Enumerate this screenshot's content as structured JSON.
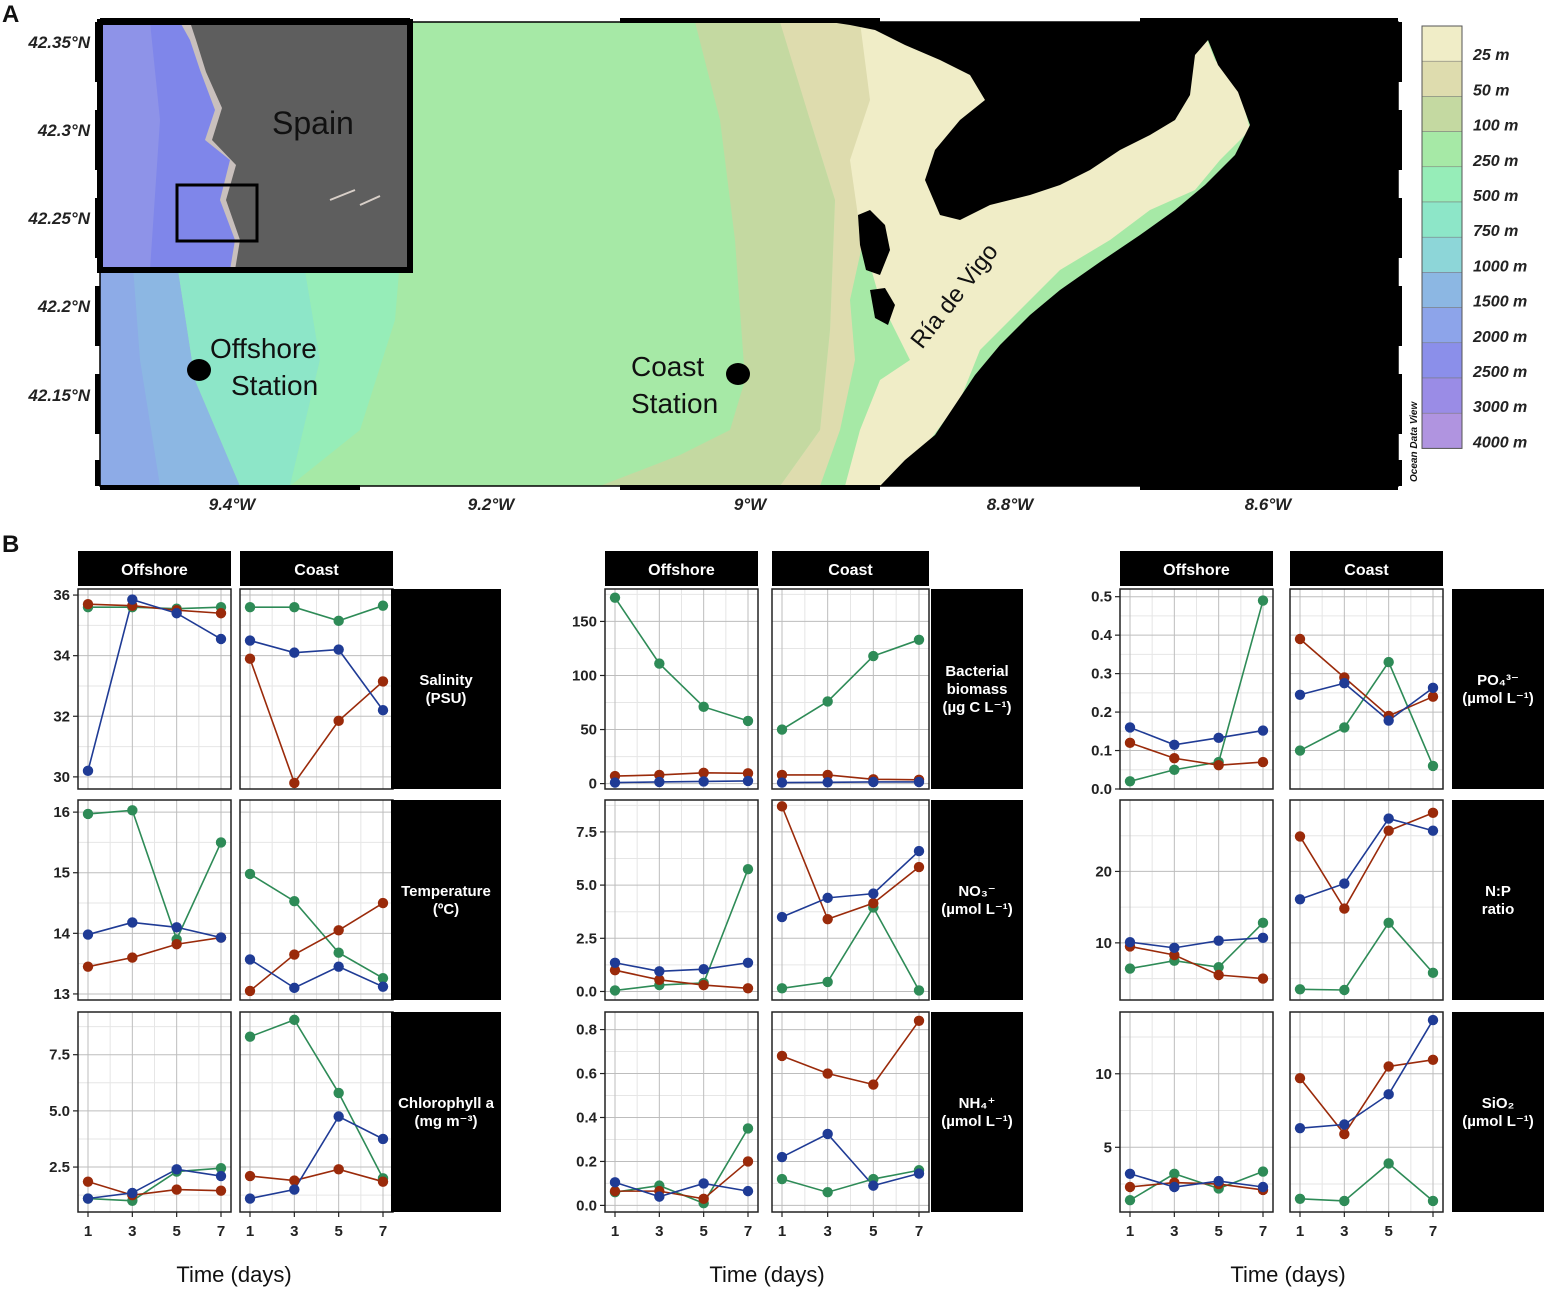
{
  "panel_a": {
    "letter": "A",
    "lat_ticks": [
      "42.35°N",
      "42.3°N",
      "42.25°N",
      "42.2°N",
      "42.15°N"
    ],
    "lon_ticks": [
      "9.4°W",
      "9.2°W",
      "9°W",
      "8.8°W",
      "8.6°W"
    ],
    "inset_label": "Spain",
    "stations": [
      {
        "name_line1": "Offshore",
        "name_line2": "Station"
      },
      {
        "name_line1": "Coast",
        "name_line2": "Station"
      }
    ],
    "ria_label": "Ría de Vigo",
    "legend_items": [
      "25 m",
      "50 m",
      "100 m",
      "250 m",
      "500 m",
      "750 m",
      "1000 m",
      "1500 m",
      "2000 m",
      "2500 m",
      "3000 m",
      "4000 m"
    ],
    "legend_colors": [
      "#f0edc7",
      "#dedcae",
      "#c4d9a1",
      "#a6e9a6",
      "#96edb8",
      "#8de6c8",
      "#8dd6d8",
      "#8cb7e3",
      "#8da4ea",
      "#8b8fea",
      "#9a8ce6",
      "#b094e0"
    ],
    "watermark": "Ocean Data View",
    "colors": {
      "land": "#000000",
      "inset_land": "#5e5e5e",
      "inset_sea": "#7f86ea"
    }
  },
  "panel_b": {
    "letter": "B",
    "x_axis_title": "Time (days)",
    "x_ticks": [
      "1",
      "3",
      "5",
      "7"
    ],
    "facet_labels": {
      "offshore": "Offshore",
      "coast": "Coast"
    },
    "series_colors": {
      "blue": "#1f3b95",
      "red": "#9a2a0a",
      "green": "#2e8b57"
    }
  },
  "chart_data": [
    {
      "type": "line",
      "variable_label": [
        "Salinity",
        "(PSU)"
      ],
      "x": [
        1,
        3,
        5,
        7
      ],
      "ylim": [
        29.6,
        36.2
      ],
      "y_ticks": [
        30,
        32,
        34,
        36
      ],
      "y_tick_labels": [
        "30",
        "32",
        "34",
        "36"
      ],
      "facets": {
        "offshore": {
          "blue": [
            30.2,
            35.85,
            35.4,
            34.55
          ],
          "red": [
            35.7,
            35.65,
            35.5,
            35.4
          ],
          "green": [
            35.6,
            35.6,
            35.55,
            35.6
          ]
        },
        "coast": {
          "blue": [
            34.5,
            34.1,
            34.2,
            32.2
          ],
          "red": [
            33.9,
            29.8,
            31.85,
            33.15
          ],
          "green": [
            35.6,
            35.6,
            35.15,
            35.65
          ]
        }
      }
    },
    {
      "type": "line",
      "variable_label": [
        "Temperature",
        "(ºC)"
      ],
      "x": [
        1,
        3,
        5,
        7
      ],
      "ylim": [
        12.9,
        16.2
      ],
      "y_ticks": [
        13,
        14,
        15,
        16
      ],
      "y_tick_labels": [
        "13",
        "14",
        "15",
        "16"
      ],
      "facets": {
        "offshore": {
          "blue": [
            13.98,
            14.18,
            14.1,
            13.93
          ],
          "red": [
            13.45,
            13.6,
            13.82,
            13.93
          ],
          "green": [
            15.97,
            16.03,
            13.9,
            15.5
          ]
        },
        "coast": {
          "blue": [
            13.57,
            13.1,
            13.45,
            13.12
          ],
          "red": [
            13.05,
            13.65,
            14.05,
            14.5
          ],
          "green": [
            14.98,
            14.53,
            13.68,
            13.26
          ]
        }
      }
    },
    {
      "type": "line",
      "variable_label": [
        "Chlorophyll a",
        "(mg m⁻³)"
      ],
      "x": [
        1,
        3,
        5,
        7
      ],
      "ylim": [
        0.5,
        9.4
      ],
      "y_ticks": [
        2.5,
        5,
        7.5
      ],
      "y_tick_labels": [
        "2.5",
        "5.0",
        "7.5"
      ],
      "facets": {
        "offshore": {
          "blue": [
            1.1,
            1.35,
            2.4,
            2.1
          ],
          "red": [
            1.85,
            1.25,
            1.5,
            1.45
          ],
          "green": [
            1.1,
            1.0,
            2.3,
            2.45
          ]
        },
        "coast": {
          "blue": [
            1.1,
            1.5,
            4.75,
            3.75
          ],
          "red": [
            2.1,
            1.9,
            2.4,
            1.85
          ],
          "green": [
            8.3,
            9.05,
            5.8,
            2.0
          ]
        }
      }
    },
    {
      "type": "line",
      "variable_label": [
        "Bacterial",
        "biomass",
        "(µg C L⁻¹)"
      ],
      "x": [
        1,
        3,
        5,
        7
      ],
      "ylim": [
        -5,
        180
      ],
      "y_ticks": [
        0,
        50,
        100,
        150
      ],
      "y_tick_labels": [
        "0",
        "50",
        "100",
        "150"
      ],
      "facets": {
        "offshore": {
          "blue": [
            1,
            1.5,
            2,
            2.5
          ],
          "red": [
            7,
            8,
            10,
            9.5
          ],
          "green": [
            172,
            111,
            71,
            58
          ]
        },
        "coast": {
          "blue": [
            1,
            1.2,
            1.5,
            1.5
          ],
          "red": [
            8,
            8,
            4,
            3.5
          ],
          "green": [
            50,
            76,
            118,
            133
          ]
        }
      }
    },
    {
      "type": "line",
      "variable_label": [
        "NO₃⁻",
        "(µmol L⁻¹)"
      ],
      "x": [
        1,
        3,
        5,
        7
      ],
      "ylim": [
        -0.4,
        9.0
      ],
      "y_ticks": [
        0,
        2.5,
        5,
        7.5
      ],
      "y_tick_labels": [
        "0.0",
        "2.5",
        "5.0",
        "7.5"
      ],
      "facets": {
        "offshore": {
          "blue": [
            1.35,
            0.95,
            1.05,
            1.35
          ],
          "red": [
            1.0,
            0.55,
            0.3,
            0.15
          ],
          "green": [
            0.05,
            0.3,
            0.4,
            5.75
          ]
        },
        "coast": {
          "blue": [
            3.5,
            4.4,
            4.6,
            6.6
          ],
          "red": [
            8.7,
            3.4,
            4.15,
            5.85
          ],
          "green": [
            0.15,
            0.45,
            3.95,
            0.05
          ]
        }
      }
    },
    {
      "type": "line",
      "variable_label": [
        "NH₄⁺",
        "(µmol L⁻¹)"
      ],
      "x": [
        1,
        3,
        5,
        7
      ],
      "ylim": [
        -0.03,
        0.88
      ],
      "y_ticks": [
        0,
        0.2,
        0.4,
        0.6,
        0.8
      ],
      "y_tick_labels": [
        "0.0",
        "0.2",
        "0.4",
        "0.6",
        "0.8"
      ],
      "facets": {
        "offshore": {
          "blue": [
            0.105,
            0.04,
            0.1,
            0.065
          ],
          "red": [
            0.065,
            0.065,
            0.03,
            0.2
          ],
          "green": [
            0.06,
            0.09,
            0.01,
            0.35
          ]
        },
        "coast": {
          "blue": [
            0.22,
            0.325,
            0.09,
            0.145
          ],
          "red": [
            0.68,
            0.6,
            0.55,
            0.84
          ],
          "green": [
            0.12,
            0.06,
            0.12,
            0.16
          ]
        }
      }
    },
    {
      "type": "line",
      "variable_label": [
        "PO₄³⁻",
        "(µmol L⁻¹)"
      ],
      "x": [
        1,
        3,
        5,
        7
      ],
      "ylim": [
        0,
        0.52
      ],
      "y_ticks": [
        0,
        0.1,
        0.2,
        0.3,
        0.4,
        0.5
      ],
      "y_tick_labels": [
        "0.0",
        "0.1",
        "0.2",
        "0.3",
        "0.4",
        "0.5"
      ],
      "facets": {
        "offshore": {
          "blue": [
            0.16,
            0.115,
            0.133,
            0.152
          ],
          "red": [
            0.12,
            0.08,
            0.062,
            0.07
          ],
          "green": [
            0.02,
            0.05,
            0.07,
            0.49
          ]
        },
        "coast": {
          "blue": [
            0.245,
            0.275,
            0.178,
            0.263
          ],
          "red": [
            0.39,
            0.29,
            0.19,
            0.24
          ],
          "green": [
            0.1,
            0.16,
            0.33,
            0.06
          ]
        }
      }
    },
    {
      "type": "line",
      "variable_label": [
        "N:P",
        "ratio"
      ],
      "x": [
        1,
        3,
        5,
        7
      ],
      "ylim": [
        2,
        30
      ],
      "y_ticks": [
        10,
        20
      ],
      "y_tick_labels": [
        "10",
        "20"
      ],
      "facets": {
        "offshore": {
          "blue": [
            10.1,
            9.3,
            10.3,
            10.7
          ],
          "red": [
            9.5,
            8.3,
            5.5,
            5.0
          ],
          "green": [
            6.4,
            7.5,
            6.6,
            12.8
          ]
        },
        "coast": {
          "blue": [
            16.1,
            18.3,
            27.4,
            25.7
          ],
          "red": [
            24.9,
            14.8,
            25.7,
            28.2
          ],
          "green": [
            3.5,
            3.4,
            12.8,
            5.8
          ]
        }
      }
    },
    {
      "type": "line",
      "variable_label": [
        "SiO₂",
        "(µmol L⁻¹)"
      ],
      "x": [
        1,
        3,
        5,
        7
      ],
      "ylim": [
        0.6,
        14.2
      ],
      "y_ticks": [
        5,
        10
      ],
      "y_tick_labels": [
        "5",
        "10"
      ],
      "facets": {
        "offshore": {
          "blue": [
            3.2,
            2.3,
            2.7,
            2.3
          ],
          "red": [
            2.3,
            2.6,
            2.5,
            2.1
          ],
          "green": [
            1.4,
            3.2,
            2.2,
            3.35
          ]
        },
        "coast": {
          "blue": [
            6.3,
            6.55,
            8.6,
            13.65
          ],
          "red": [
            9.7,
            5.9,
            10.5,
            10.95
          ],
          "green": [
            1.5,
            1.35,
            3.9,
            1.35
          ]
        }
      }
    }
  ]
}
